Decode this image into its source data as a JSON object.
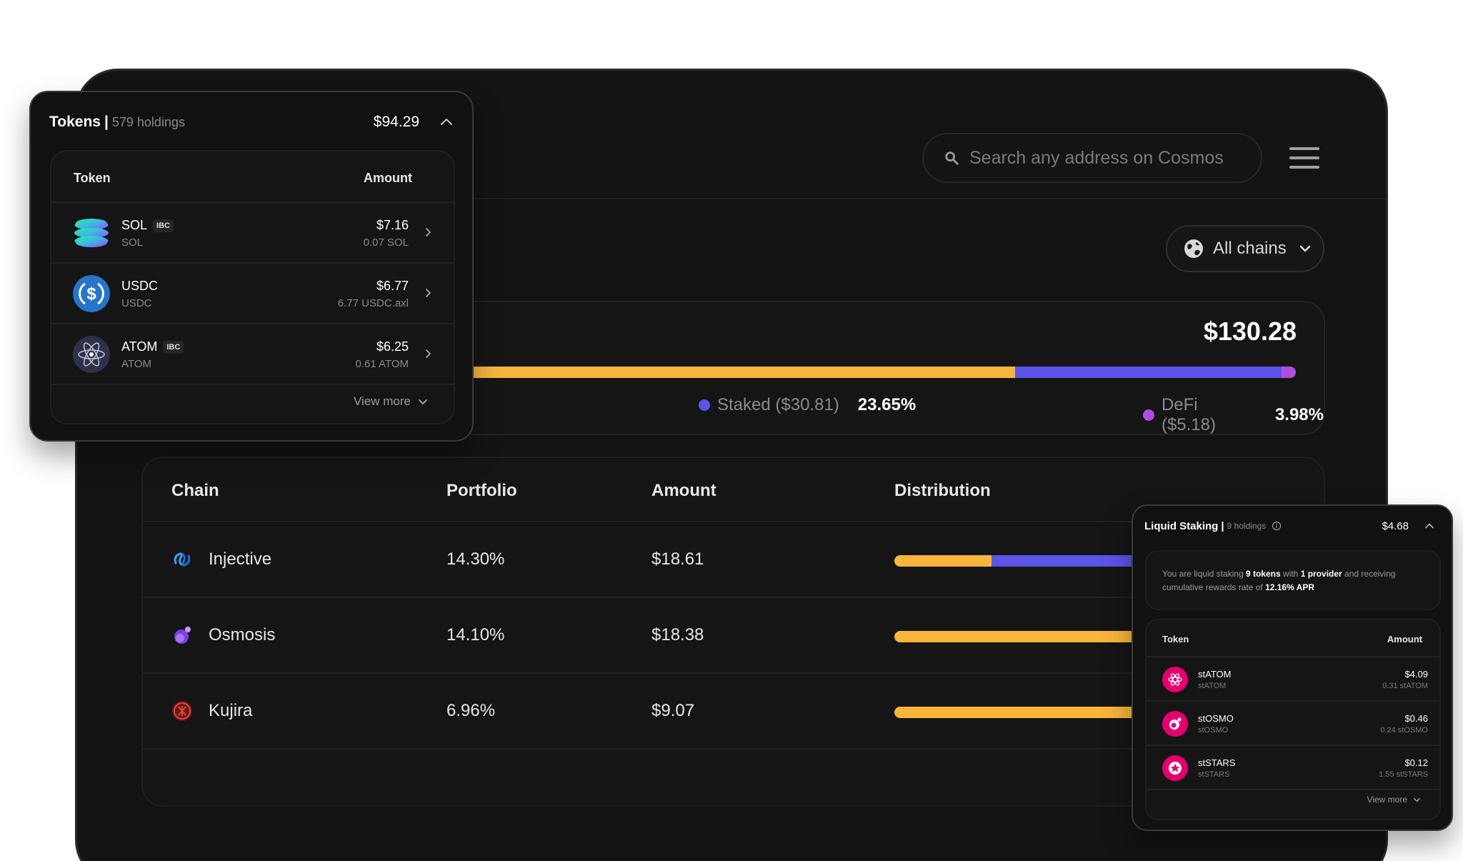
{
  "search": {
    "placeholder": "Search any address on Cosmos"
  },
  "chain_filter": {
    "label": "All chains"
  },
  "summary": {
    "total": "$130.28",
    "distribution": {
      "liquid_fraction": 0.7565,
      "staked_fraction": 0.2365,
      "defi_fraction": 0.0398
    },
    "legend": [
      {
        "label": "Staked ($30.81)",
        "pct": "23.65%",
        "color": "#5b54e8"
      },
      {
        "label": "DeFi ($5.18)",
        "pct": "3.98%",
        "color": "#b24ce0"
      }
    ],
    "colors": {
      "liquid": "#f8b53c",
      "staked": "#5b54e8",
      "defi": "#b24ce0"
    }
  },
  "chain_table": {
    "headers": {
      "chain": "Chain",
      "portfolio": "Portfolio",
      "amount": "Amount",
      "distribution": "Distribution"
    },
    "rows": [
      {
        "icon": "injective-icon",
        "name": "Injective",
        "portfolio": "14.30%",
        "amount": "$18.61"
      },
      {
        "icon": "osmosis-icon",
        "name": "Osmosis",
        "portfolio": "14.10%",
        "amount": "$18.38"
      },
      {
        "icon": "kujira-icon",
        "name": "Kujira",
        "portfolio": "6.96%",
        "amount": "$9.07"
      }
    ]
  },
  "tokens_panel": {
    "title": "Tokens",
    "separator": "|",
    "count": "579 holdings",
    "total": "$94.29",
    "headers": {
      "token": "Token",
      "amount": "Amount"
    },
    "rows": [
      {
        "icon": "solana-icon",
        "name": "SOL",
        "badge": "IBC",
        "symbol": "SOL",
        "value": "$7.16",
        "amount": "0.07 SOL"
      },
      {
        "icon": "usdc-icon",
        "name": "USDC",
        "badge": "",
        "symbol": "USDC",
        "value": "$6.77",
        "amount": "6.77 USDC.axl"
      },
      {
        "icon": "atom-icon",
        "name": "ATOM",
        "badge": "IBC",
        "symbol": "ATOM",
        "value": "$6.25",
        "amount": "0.61 ATOM"
      }
    ],
    "view_more": "View more"
  },
  "liquid_staking": {
    "title": "Liquid Staking",
    "separator": "|",
    "count": "9 holdings",
    "total": "$4.68",
    "desc": {
      "p1": "You are liquid staking ",
      "tokens": "9 tokens",
      "p2": " with ",
      "providers": "1 provider",
      "p3": " and receiving cumulative rewards rate of ",
      "apr": "12.16% APR"
    },
    "headers": {
      "token": "Token",
      "amount": "Amount"
    },
    "rows": [
      {
        "icon": "statom-icon",
        "name": "stATOM",
        "symbol": "stATOM",
        "value": "$4.09",
        "amount": "0.31 stATOM"
      },
      {
        "icon": "stosmo-icon",
        "name": "stOSMO",
        "symbol": "stOSMO",
        "value": "$0.46",
        "amount": "0.24 stOSMO"
      },
      {
        "icon": "ststars-icon",
        "name": "stSTARS",
        "symbol": "stSTARS",
        "value": "$0.12",
        "amount": "1.55 stSTARS"
      }
    ],
    "view_more": "View more"
  }
}
